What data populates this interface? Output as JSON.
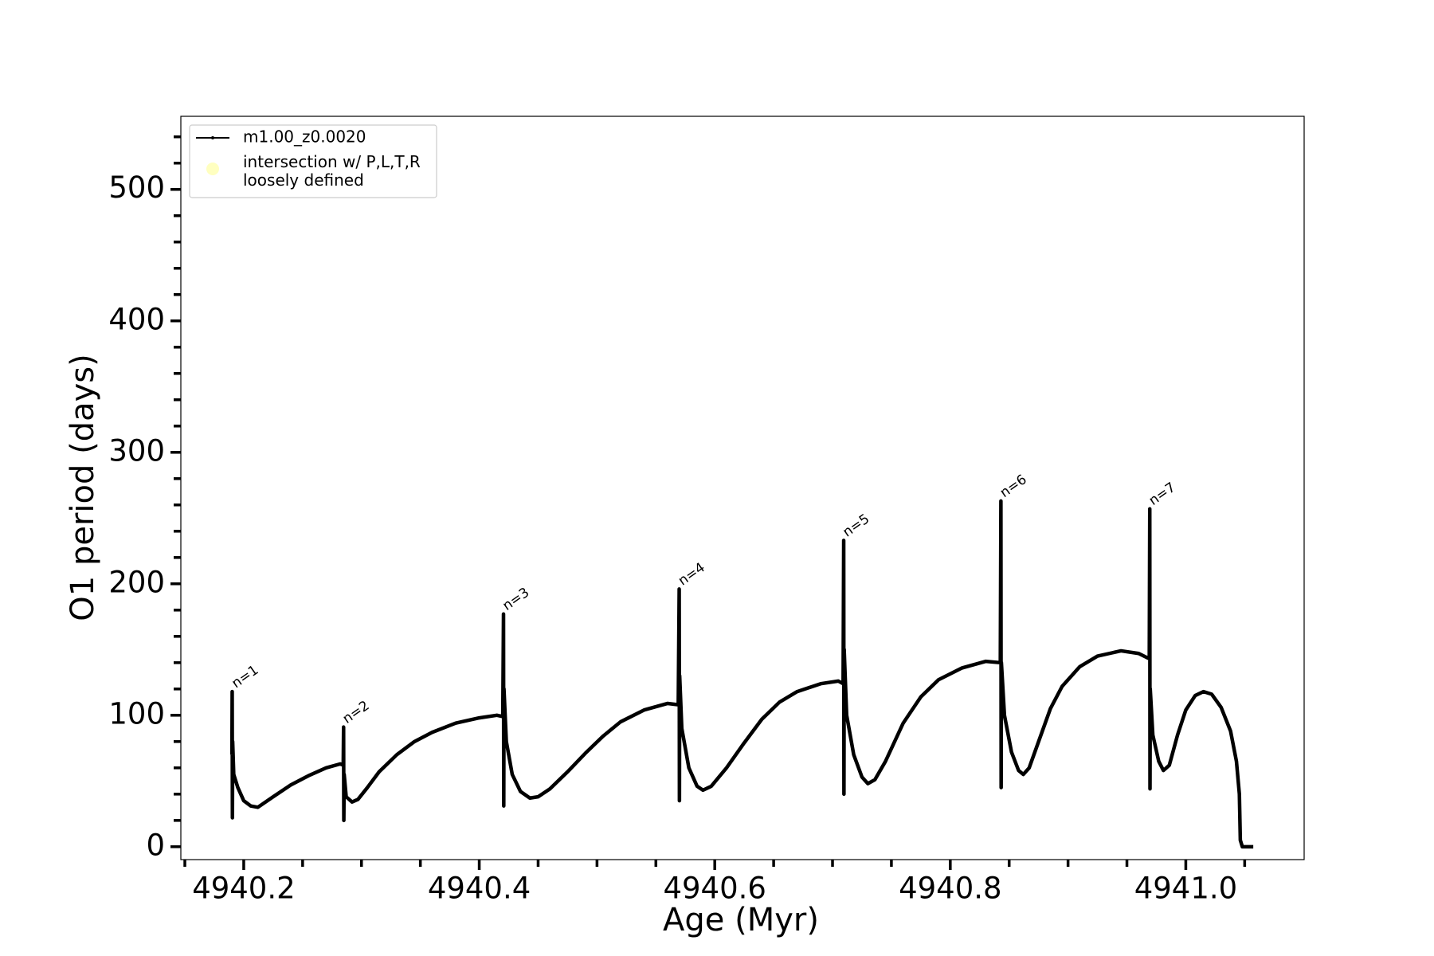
{
  "chart_data": {
    "type": "line",
    "xlabel": "Age (Myr)",
    "ylabel": "O1 period (days)",
    "xlim": [
      4940.1466,
      4941.1005
    ],
    "ylim": [
      -9.8,
      555.6
    ],
    "xticks": [
      {
        "value": 4940.2,
        "label": "4940.2"
      },
      {
        "value": 4940.4,
        "label": "4940.4"
      },
      {
        "value": 4940.6,
        "label": "4940.6"
      },
      {
        "value": 4940.8,
        "label": "4940.8"
      },
      {
        "value": 4941.0,
        "label": "4941.0"
      }
    ],
    "xminorticks": [
      4940.15,
      4940.25,
      4940.3,
      4940.35,
      4940.45,
      4940.5,
      4940.55,
      4940.65,
      4940.7,
      4940.75,
      4940.85,
      4940.9,
      4940.95,
      4941.05
    ],
    "yticks": [
      0,
      100,
      200,
      300,
      400,
      500
    ],
    "yminorticks": [
      20,
      40,
      60,
      80,
      120,
      140,
      160,
      180,
      220,
      240,
      260,
      280,
      320,
      340,
      360,
      380,
      420,
      440,
      460,
      480,
      520,
      540
    ],
    "grid": false,
    "legend": "upper left",
    "series": [
      {
        "name": "m1.00_z0.0020",
        "color": "#000000",
        "x": [
          4940.19,
          4940.1902,
          4940.1904,
          4940.1906,
          4940.1915,
          4940.195,
          4940.2,
          4940.206,
          4940.212,
          4940.225,
          4940.24,
          4940.255,
          4940.27,
          4940.282,
          4940.2845,
          4940.2848,
          4940.285,
          4940.2853,
          4940.287,
          4940.292,
          4940.297,
          4940.305,
          4940.315,
          4940.33,
          4940.345,
          4940.36,
          4940.38,
          4940.4,
          4940.415,
          4940.42,
          4940.4206,
          4940.4208,
          4940.421,
          4940.423,
          4940.428,
          4940.435,
          4940.443,
          4940.45,
          4940.46,
          4940.475,
          4940.49,
          4940.505,
          4940.52,
          4940.54,
          4940.56,
          4940.569,
          4940.5698,
          4940.57,
          4940.5702,
          4940.572,
          4940.578,
          4940.585,
          4940.59,
          4940.597,
          4940.61,
          4940.625,
          4940.64,
          4940.655,
          4940.67,
          4940.69,
          4940.705,
          4940.709,
          4940.7095,
          4940.7097,
          4940.7099,
          4940.712,
          4940.718,
          4940.725,
          4940.73,
          4940.736,
          4940.745,
          4940.76,
          4940.775,
          4940.79,
          4940.81,
          4940.83,
          4940.8425,
          4940.843,
          4940.8432,
          4940.8434,
          4940.846,
          4940.852,
          4940.858,
          4940.862,
          4940.867,
          4940.875,
          4940.885,
          4940.895,
          4940.91,
          4940.925,
          4940.945,
          4940.96,
          4940.969,
          4940.9694,
          4940.9696,
          4940.9698,
          4940.972,
          4940.977,
          4940.981,
          4940.986,
          4940.993,
          4941.0,
          4941.008,
          4941.015,
          4941.022,
          4941.03,
          4941.038,
          4941.043,
          4941.0455,
          4941.0463,
          4941.048,
          4941.0573
        ],
        "values": [
          70,
          118,
          22,
          80,
          55,
          45,
          35,
          31,
          30,
          38,
          47,
          54,
          60,
          63,
          62,
          91,
          20,
          55,
          38,
          34,
          36,
          45,
          57,
          70,
          80,
          87,
          94,
          98,
          100,
          99,
          177,
          31,
          120,
          80,
          55,
          42,
          37,
          38,
          44,
          57,
          71,
          84,
          95,
          104,
          109,
          108,
          196,
          35,
          130,
          90,
          60,
          46,
          43,
          46,
          60,
          79,
          97,
          110,
          118,
          124,
          126,
          124,
          233,
          40,
          150,
          100,
          70,
          53,
          48,
          51,
          65,
          94,
          114,
          127,
          136,
          141,
          140,
          263,
          45,
          140,
          100,
          72,
          58,
          55,
          60,
          80,
          105,
          122,
          137,
          145,
          149,
          147,
          143,
          257,
          44,
          120,
          85,
          65,
          58,
          62,
          85,
          104,
          115,
          118,
          116,
          106,
          88,
          65,
          40,
          5,
          0,
          0
        ]
      },
      {
        "name": "intersection w/ P,L,T,R\nloosely defined",
        "color": "#ffffc0",
        "x": [],
        "values": []
      }
    ],
    "annotations": [
      {
        "text": "n=1",
        "x": 4940.1906,
        "y": 118
      },
      {
        "text": "n=2",
        "x": 4940.2848,
        "y": 91
      },
      {
        "text": "n=3",
        "x": 4940.4206,
        "y": 177
      },
      {
        "text": "n=4",
        "x": 4940.5698,
        "y": 196
      },
      {
        "text": "n=5",
        "x": 4940.7095,
        "y": 233
      },
      {
        "text": "n=6",
        "x": 4940.843,
        "y": 263
      },
      {
        "text": "n=7",
        "x": 4940.9694,
        "y": 257
      }
    ]
  }
}
